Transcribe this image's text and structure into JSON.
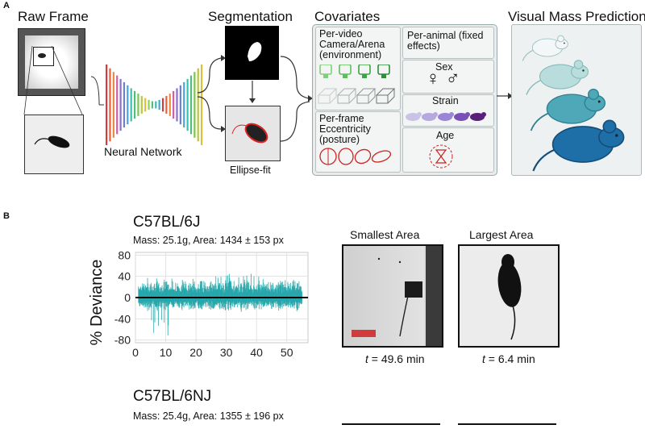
{
  "panel_a": {
    "letter": "A",
    "raw_frame": "Raw Frame",
    "neural_network": "Neural Network",
    "segmentation": "Segmentation",
    "ellipse_fit": "Ellipse-fit",
    "covariates": "Covariates",
    "per_video": "Per-video Camera/Arena (environment)",
    "per_animal": "Per-animal (fixed effects)",
    "sex": "Sex",
    "strain": "Strain",
    "per_frame": "Per-frame Eccentricity (posture)",
    "age": "Age",
    "visual_mass_prediction": "Visual Mass Prediction"
  },
  "panel_b": {
    "letter": "B",
    "strain1": {
      "name": "C57BL/6J",
      "stats": "Mass: 25.1g, Area: 1434 ± 153 px",
      "smallest_label": "Smallest Area",
      "largest_label": "Largest Area",
      "smallest_time": "= 49.6 min",
      "largest_time": "= 6.4 min",
      "time_var": "t"
    },
    "strain2": {
      "name": "C57BL/6NJ",
      "stats": "Mass: 25.4g, Area: 1355 ± 196 px"
    }
  },
  "chart_data": {
    "type": "line",
    "ylabel": "% Deviance",
    "xlabel": "",
    "xlim": [
      0,
      57
    ],
    "ylim": [
      -85,
      85
    ],
    "x_ticks": [
      0,
      10,
      20,
      30,
      40,
      50
    ],
    "y_ticks": [
      80,
      40,
      0,
      -40,
      -80
    ],
    "grid": true,
    "colors": {
      "series": "#1fa3a8",
      "zero_line": "#000000"
    }
  }
}
